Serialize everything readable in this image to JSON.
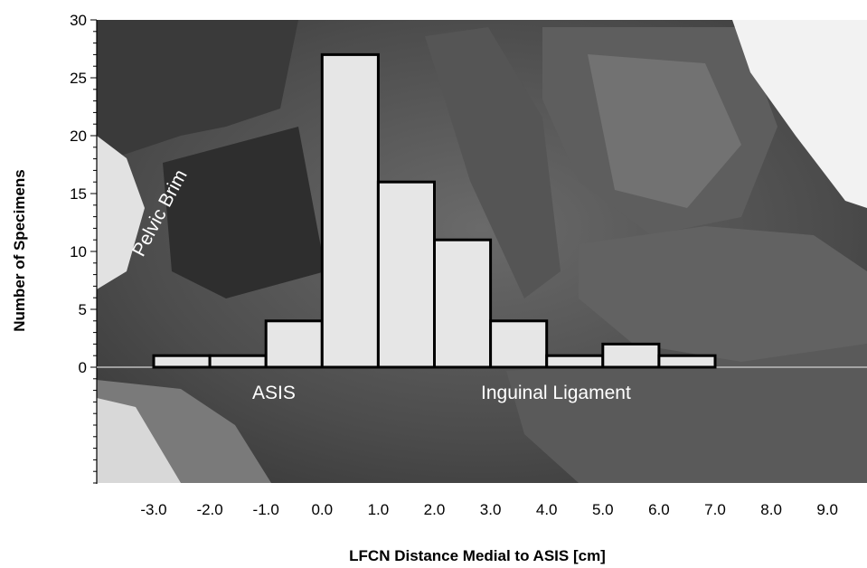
{
  "chart_data": {
    "type": "bar",
    "title": "",
    "xlabel": "LFCN Distance Medial to ASIS [cm]",
    "ylabel": "Number of Specimens",
    "x_ticks": [
      "-3.0",
      "-2.0",
      "-1.0",
      "0.0",
      "1.0",
      "2.0",
      "3.0",
      "4.0",
      "5.0",
      "6.0",
      "7.0",
      "8.0",
      "9.0"
    ],
    "y_ticks": [
      "0",
      "5",
      "10",
      "15",
      "20",
      "25",
      "30"
    ],
    "ylim": [
      0,
      30
    ],
    "xlim": [
      -3.0,
      9.0
    ],
    "bins": [
      {
        "x0": -3.0,
        "x1": -2.0,
        "count": 1
      },
      {
        "x0": -2.0,
        "x1": -1.0,
        "count": 1
      },
      {
        "x0": -1.0,
        "x1": 0.0,
        "count": 4
      },
      {
        "x0": 0.0,
        "x1": 1.0,
        "count": 27
      },
      {
        "x0": 1.0,
        "x1": 2.0,
        "count": 16
      },
      {
        "x0": 2.0,
        "x1": 3.0,
        "count": 11
      },
      {
        "x0": 3.0,
        "x1": 4.0,
        "count": 4
      },
      {
        "x0": 4.0,
        "x1": 5.0,
        "count": 1
      },
      {
        "x0": 5.0,
        "x1": 6.0,
        "count": 2
      },
      {
        "x0": 6.0,
        "x1": 7.0,
        "count": 1
      }
    ],
    "annotations": [
      "Pelvic Brim",
      "ASIS",
      "Inguinal Ligament"
    ],
    "background": "grayscale cadaver dissection photograph",
    "bar_fill": "#e6e6e6",
    "bar_stroke": "#000000",
    "grid": false,
    "legend": "none"
  }
}
